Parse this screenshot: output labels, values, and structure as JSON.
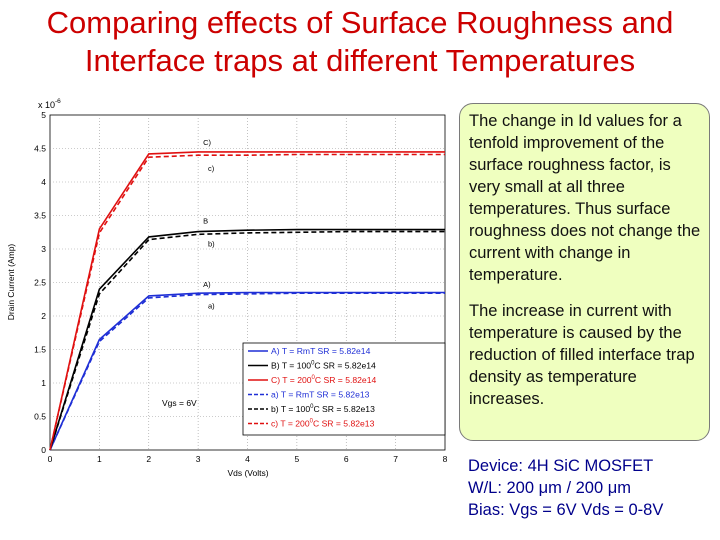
{
  "slide": {
    "title_line1": "Comparing effects of Surface Roughness and",
    "title_line2": "Interface traps at different Temperatures"
  },
  "notes": {
    "paragraph1": "The change in Id values for a tenfold improvement of the surface roughness factor, is very small at all three temperatures. Thus surface roughness does not change the current with change in temperature.",
    "paragraph2": "The increase in current with temperature is caused by the reduction of filled interface trap density as temperature increases."
  },
  "device": {
    "line1": "Device: 4H SiC MOSFET",
    "line2": "W/L: 200 μm / 200 μm",
    "line3": "Bias: Vgs = 6V Vds = 0-8V"
  },
  "colors": {
    "title": "#cc0000",
    "note_bg": "#efffbf",
    "device_text": "#00008b",
    "blue": "#1f2fd6",
    "black": "#000000",
    "red": "#e01010"
  },
  "chart_data": {
    "type": "line",
    "xlabel": "Vds (Volts)",
    "ylabel": "Drain Current (Amp)",
    "scale_base": "x 10",
    "scale_exp": "-6",
    "xlim": [
      0,
      8
    ],
    "ylim": [
      0,
      5
    ],
    "xticks": [
      0,
      1,
      2,
      3,
      4,
      5,
      6,
      7,
      8
    ],
    "yticks": [
      0,
      0.5,
      1,
      1.5,
      2,
      2.5,
      3,
      3.5,
      4,
      4.5,
      5
    ],
    "grid": true,
    "legend_position": "bottom-right",
    "annotation_vgs": "Vgs = 6V",
    "x": [
      0,
      1,
      2,
      3,
      4,
      5,
      6,
      7,
      8
    ],
    "series": [
      {
        "name": "A) T = RmT SR = 5.82e14",
        "label_main": "A) T = RmT SR = 5.82e14",
        "curve_label": "A)",
        "color": "blue",
        "dashed": false,
        "values": [
          0,
          1.65,
          2.3,
          2.34,
          2.35,
          2.35,
          2.35,
          2.35,
          2.35
        ]
      },
      {
        "name": "B) T = 100°C SR = 5.82e14",
        "label_pre": "B) T = 100",
        "label_sup": "0",
        "label_post": "C SR = 5.82e14",
        "curve_label": "B",
        "color": "black",
        "dashed": false,
        "values": [
          0,
          2.4,
          3.18,
          3.26,
          3.28,
          3.29,
          3.29,
          3.29,
          3.29
        ]
      },
      {
        "name": "C) T = 200°C SR = 5.82e14",
        "label_pre": "C) T = 200",
        "label_sup": "0",
        "label_post": "C SR = 5.82e14",
        "curve_label": "C)",
        "color": "red",
        "dashed": false,
        "values": [
          0,
          3.3,
          4.42,
          4.45,
          4.45,
          4.45,
          4.45,
          4.45,
          4.45
        ]
      },
      {
        "name": "a) T = RmT SR = 5.82e13",
        "label_main": "a) T = RmT SR = 5.82e13",
        "curve_label": "a)",
        "color": "blue",
        "dashed": true,
        "values": [
          0,
          1.62,
          2.27,
          2.32,
          2.33,
          2.34,
          2.34,
          2.34,
          2.34
        ]
      },
      {
        "name": "b) T = 100°C SR = 5.82e13",
        "label_pre": "b) T = 100",
        "label_sup": "0",
        "label_post": "C SR = 5.82e13",
        "curve_label": "b)",
        "color": "black",
        "dashed": true,
        "values": [
          0,
          2.33,
          3.14,
          3.22,
          3.24,
          3.25,
          3.26,
          3.26,
          3.26
        ]
      },
      {
        "name": "c) T = 200°C SR = 5.82e13",
        "label_pre": "c) T = 200",
        "label_sup": "0",
        "label_post": "C SR = 5.82e13",
        "curve_label": "c)",
        "color": "red",
        "dashed": true,
        "values": [
          0,
          3.24,
          4.37,
          4.4,
          4.4,
          4.41,
          4.41,
          4.41,
          4.41
        ]
      }
    ]
  }
}
